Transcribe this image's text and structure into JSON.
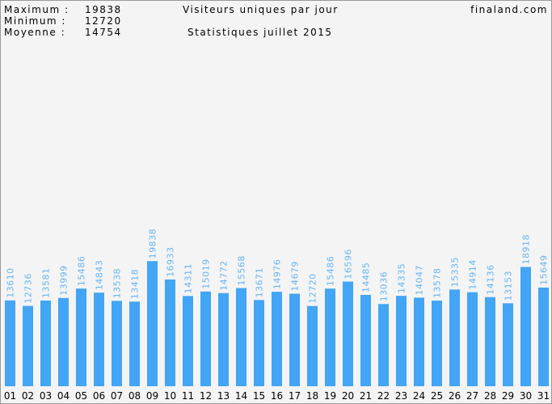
{
  "chart_data": {
    "type": "bar",
    "title": "Visiteurs uniques par jour",
    "subtitle": "Statistiques juillet 2015",
    "site": "finaland.com",
    "stats": [
      {
        "label": "Maximum :",
        "value": 19838
      },
      {
        "label": "Minimum :",
        "value": 12720
      },
      {
        "label": "Moyenne :",
        "value": 14754
      }
    ],
    "categories": [
      "01",
      "02",
      "03",
      "04",
      "05",
      "06",
      "07",
      "08",
      "09",
      "10",
      "11",
      "12",
      "13",
      "14",
      "15",
      "16",
      "17",
      "18",
      "19",
      "20",
      "21",
      "22",
      "23",
      "24",
      "25",
      "26",
      "27",
      "28",
      "29",
      "30",
      "31"
    ],
    "values": [
      13610,
      12736,
      13581,
      13999,
      15486,
      14843,
      13538,
      13418,
      19838,
      16933,
      14311,
      15019,
      14772,
      15568,
      13671,
      14976,
      14679,
      12720,
      15486,
      16596,
      14485,
      13036,
      14335,
      14047,
      13578,
      15335,
      14914,
      14136,
      13153,
      18918,
      15649
    ],
    "color": "#42a5f5",
    "label_color": "#64b5f6",
    "ylim": [
      0,
      61000
    ]
  }
}
